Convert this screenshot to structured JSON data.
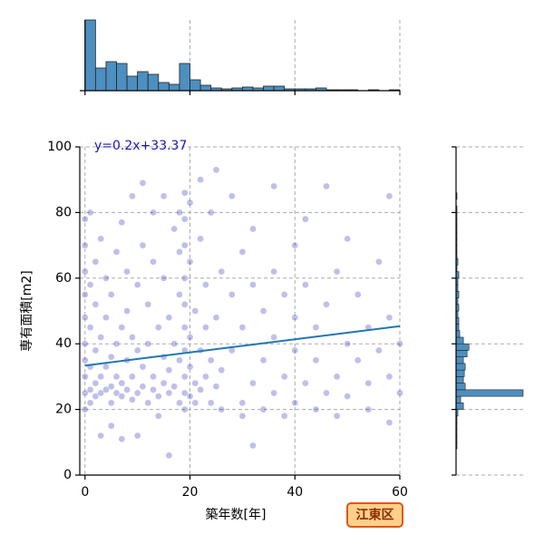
{
  "chart_data": [
    {
      "type": "scatter",
      "xlabel": "築年数[年]",
      "ylabel": "専有面積[m2]",
      "annotation": "y=0.2x+33.37",
      "badge": "江東区",
      "xlim": [
        -1,
        60
      ],
      "ylim": [
        0,
        100
      ],
      "xticks": [
        0,
        20,
        40,
        60
      ],
      "yticks": [
        0,
        20,
        40,
        60,
        80,
        100
      ],
      "grid": true,
      "color": "#2a2ab8",
      "regression": {
        "slope": 0.2,
        "intercept": 33.37,
        "color": "#1f77b4"
      },
      "x": [
        0,
        0,
        0,
        0,
        0,
        0,
        0,
        0,
        0,
        0,
        1,
        1,
        1,
        1,
        1,
        1,
        2,
        2,
        2,
        2,
        2,
        3,
        3,
        3,
        3,
        3,
        4,
        4,
        4,
        4,
        5,
        5,
        5,
        5,
        5,
        6,
        6,
        6,
        6,
        7,
        7,
        7,
        7,
        7,
        8,
        8,
        8,
        8,
        9,
        9,
        9,
        9,
        10,
        10,
        10,
        10,
        11,
        11,
        11,
        11,
        12,
        12,
        12,
        13,
        13,
        13,
        13,
        14,
        14,
        14,
        15,
        15,
        15,
        15,
        16,
        16,
        16,
        16,
        17,
        17,
        17,
        18,
        18,
        18,
        18,
        18,
        19,
        19,
        19,
        19,
        19,
        19,
        19,
        19,
        19,
        19,
        20,
        20,
        20,
        20,
        20,
        21,
        21,
        21,
        22,
        22,
        22,
        22,
        23,
        23,
        23,
        24,
        24,
        24,
        25,
        25,
        25,
        26,
        26,
        26,
        28,
        28,
        28,
        30,
        30,
        30,
        30,
        32,
        32,
        32,
        32,
        34,
        34,
        34,
        36,
        36,
        36,
        36,
        38,
        38,
        38,
        40,
        40,
        40,
        40,
        42,
        42,
        42,
        44,
        44,
        44,
        46,
        46,
        46,
        48,
        48,
        48,
        50,
        50,
        50,
        52,
        52,
        54,
        54,
        54,
        56,
        56,
        58,
        58,
        58,
        58,
        60,
        60
      ],
      "y": [
        20,
        25,
        30,
        35,
        40,
        48,
        55,
        62,
        70,
        78,
        22,
        26,
        33,
        45,
        58,
        80,
        24,
        28,
        38,
        52,
        65,
        25,
        30,
        42,
        72,
        12,
        26,
        33,
        48,
        60,
        22,
        27,
        36,
        55,
        15,
        25,
        30,
        40,
        68,
        24,
        28,
        45,
        77,
        11,
        26,
        35,
        50,
        62,
        23,
        30,
        42,
        85,
        25,
        38,
        58,
        12,
        27,
        33,
        70,
        89,
        22,
        40,
        52,
        26,
        30,
        65,
        80,
        24,
        45,
        18,
        28,
        36,
        60,
        85,
        25,
        32,
        6,
        48,
        27,
        40,
        75,
        22,
        35,
        55,
        68,
        80,
        20,
        25,
        30,
        38,
        45,
        52,
        60,
        70,
        78,
        86,
        24,
        33,
        42,
        65,
        83,
        28,
        50,
        22,
        26,
        38,
        72,
        90,
        30,
        45,
        58,
        22,
        35,
        80,
        27,
        48,
        93,
        32,
        62,
        20,
        38,
        55,
        85,
        22,
        45,
        68,
        18,
        28,
        58,
        9,
        75,
        35,
        50,
        20,
        25,
        42,
        62,
        88,
        30,
        55,
        18,
        22,
        38,
        48,
        70,
        28,
        58,
        78,
        35,
        45,
        20,
        25,
        52,
        88,
        30,
        62,
        18,
        40,
        24,
        72,
        35,
        55,
        28,
        45,
        20,
        38,
        65,
        30,
        48,
        16,
        85,
        25,
        40
      ]
    },
    {
      "type": "histogram",
      "bins": [
        0,
        2,
        4,
        6,
        8,
        10,
        12,
        14,
        16,
        18,
        20,
        22,
        24,
        26,
        28,
        30,
        32,
        34,
        36,
        38,
        40,
        42,
        44,
        46,
        48,
        50,
        52,
        54,
        56,
        58,
        60
      ],
      "values": [
        78,
        25,
        32,
        30,
        16,
        21,
        18,
        9,
        7,
        30,
        12,
        6,
        3,
        2,
        3,
        4,
        3,
        5,
        5,
        2,
        2,
        2,
        3,
        1,
        1,
        1,
        0,
        1,
        0,
        1
      ],
      "ylim": [
        0,
        78
      ],
      "color": "#4c8fc0"
    },
    {
      "type": "histogram",
      "orientation": "horizontal",
      "bins": [
        0,
        2,
        4,
        6,
        8,
        10,
        12,
        14,
        16,
        18,
        20,
        22,
        24,
        26,
        28,
        30,
        32,
        34,
        36,
        38,
        40,
        42,
        44,
        46,
        48,
        50,
        52,
        54,
        56,
        58,
        60,
        62,
        64,
        66,
        68,
        70,
        72,
        74,
        76,
        78,
        80,
        82,
        84,
        86,
        88,
        90,
        92,
        94,
        96,
        98,
        100
      ],
      "values": [
        0,
        0,
        0,
        0,
        1,
        1,
        1,
        1,
        1,
        2,
        8,
        5,
        73,
        10,
        8,
        9,
        10,
        8,
        12,
        14,
        8,
        4,
        3,
        3,
        2,
        3,
        2,
        3,
        2,
        2,
        3,
        1,
        2,
        1,
        1,
        1,
        1,
        1,
        1,
        1,
        1,
        0,
        1,
        0,
        0,
        0,
        0,
        0,
        0,
        0
      ],
      "xlim": [
        0,
        76
      ],
      "color": "#4c8fc0"
    }
  ]
}
